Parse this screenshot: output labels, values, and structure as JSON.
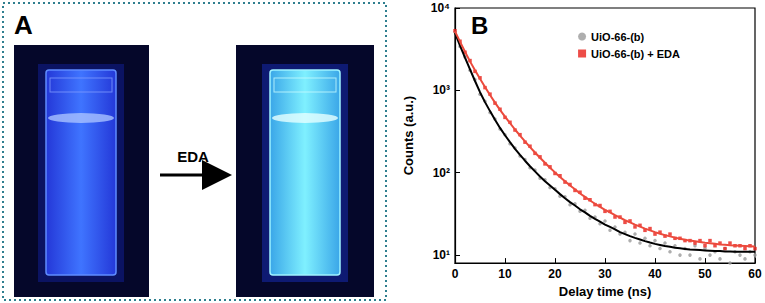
{
  "photo": {
    "label": "A",
    "arrow_label": "EDA"
  },
  "chart_data": {
    "type": "scatter",
    "title": "B",
    "x_label": "Delay time (ns)",
    "y_label": "Counts (a.u.)",
    "log": "y",
    "legend": "upper right",
    "xlim": [
      0,
      60
    ],
    "xticks": [
      0,
      10,
      20,
      30,
      40,
      50,
      60
    ],
    "ylim": [
      8,
      10000
    ],
    "yticks": [
      {
        "value": 10,
        "label": "10¹"
      },
      {
        "value": 100,
        "label": "10²"
      },
      {
        "value": 1000,
        "label": "10³"
      },
      {
        "value": 10000,
        "label": "10⁴"
      }
    ],
    "x": [
      0,
      1,
      2,
      3,
      4,
      5,
      6,
      7,
      8,
      9,
      10,
      11,
      12,
      13,
      14,
      15,
      16,
      17,
      18,
      19,
      20,
      21,
      22,
      23,
      24,
      25,
      26,
      27,
      28,
      29,
      30,
      31,
      32,
      33,
      34,
      35,
      36,
      37,
      38,
      39,
      40,
      41,
      42,
      43,
      44,
      45,
      46,
      47,
      48,
      49,
      50,
      51,
      52,
      53,
      54,
      55,
      56,
      57,
      58,
      59,
      60
    ],
    "series": [
      {
        "name": "UiO-66-(b)",
        "type": "scatter",
        "marker": "circle",
        "color": "#9a9a9a",
        "values": [
          5100,
          3400,
          2550,
          1750,
          1350,
          900,
          740,
          540,
          450,
          340,
          290,
          225,
          200,
          160,
          145,
          115,
          108,
          86,
          82,
          66,
          64,
          52,
          51,
          41,
          42,
          34,
          35,
          28,
          29,
          24,
          26,
          20,
          22,
          18,
          19,
          15,
          18,
          14,
          16,
          13,
          15,
          12,
          14,
          11,
          13,
          10,
          12,
          10,
          13,
          9,
          12,
          10,
          11,
          9,
          12,
          8,
          11,
          10,
          9,
          11,
          10
        ]
      },
      {
        "name": "UiO-66-(b) + EDA",
        "type": "scatter",
        "marker": "square",
        "color": "#e8201a",
        "values": [
          5300,
          3950,
          2900,
          2300,
          1700,
          1420,
          1080,
          900,
          700,
          590,
          470,
          410,
          330,
          290,
          235,
          210,
          172,
          156,
          128,
          118,
          98,
          92,
          77,
          72,
          61,
          58,
          49,
          47,
          41,
          40,
          34,
          34,
          29,
          29,
          25,
          26,
          22,
          23,
          20,
          21,
          18,
          19,
          17,
          18,
          16,
          16,
          15,
          15,
          14,
          15,
          13,
          15,
          13,
          14,
          12,
          14,
          13,
          13,
          12,
          13,
          12
        ]
      },
      {
        "type": "line",
        "line_style": "solid",
        "color": "#000000",
        "values": [
          5000,
          3500,
          2500,
          1800,
          1300,
          950,
          720,
          560,
          440,
          350,
          285,
          235,
          195,
          165,
          140,
          120,
          104,
          90,
          79,
          70,
          62,
          55,
          49,
          44,
          40,
          36,
          33,
          30,
          27.5,
          25.5,
          23.5,
          22,
          20.5,
          19,
          18,
          17,
          16.2,
          15.5,
          14.8,
          14.2,
          13.7,
          13.3,
          12.9,
          12.6,
          12.3,
          12.1,
          11.9,
          11.7,
          11.6,
          11.5,
          11.4,
          11.3,
          11.2,
          11.2,
          11.1,
          11.1,
          11,
          11,
          11,
          11,
          11
        ]
      },
      {
        "type": "line",
        "line_style": "solid",
        "color": "#ec4a3c",
        "values": [
          5200,
          3900,
          2950,
          2250,
          1750,
          1380,
          1100,
          880,
          710,
          580,
          480,
          400,
          335,
          282,
          240,
          205,
          176,
          152,
          132,
          115,
          101,
          89,
          79,
          70,
          63,
          56,
          51,
          46,
          42,
          38.5,
          35.5,
          33,
          30.5,
          28.5,
          26.5,
          25,
          23.5,
          22.2,
          21,
          20,
          19,
          18.2,
          17.5,
          16.9,
          16.3,
          15.8,
          15.4,
          15,
          14.7,
          14.4,
          14.1,
          13.9,
          13.7,
          13.5,
          13.4,
          13.2,
          13.1,
          13,
          12.9,
          12.8,
          12.7
        ]
      }
    ]
  }
}
